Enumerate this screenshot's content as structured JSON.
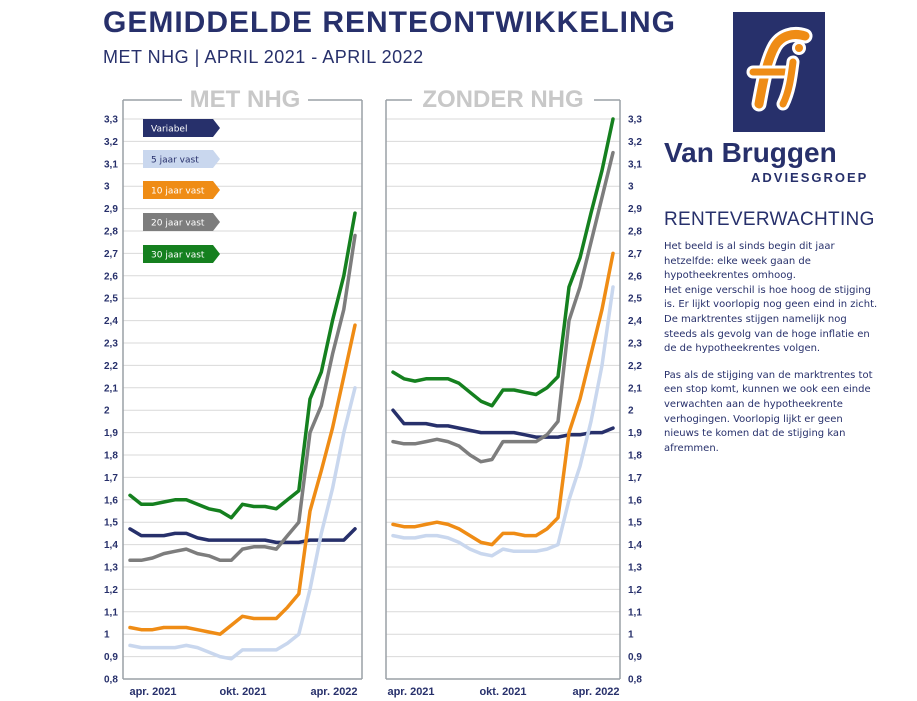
{
  "header": {
    "title": "GEMIDDELDE RENTEONTWIKKELING",
    "subtitle": "MET NHG | APRIL 2021 - APRIL 2022"
  },
  "logo": {
    "brand": "Van Bruggen",
    "sub": "ADVIESGROEP",
    "icon": "fi-monogram-icon"
  },
  "sidebar": {
    "heading": "RENTEVERWACHTING",
    "paragraphs": [
      "Het beeld is al sinds begin dit jaar hetzelfde: elke week gaan de hypotheekrentes omhoog.\nHet enige verschil is hoe hoog de stijging is. Er lijkt voorlopig nog geen eind in zicht. De marktrentes stijgen namelijk nog steeds als gevolg van de hoge inflatie en de de hypotheekrentes volgen.",
      "Pas als de stijging van de marktrentes tot een stop komt, kunnen we ook een einde verwachten aan de hypotheekrente verhogingen. Voorlopig lijkt er geen nieuws te komen dat de stijging kan afremmen."
    ]
  },
  "colors": {
    "navy": "#27306b",
    "Variabel": "#27306b",
    "5 jaar vast": "#c9d7ee",
    "10 jaar vast": "#ef8c15",
    "20 jaar vast": "#7d7d7d",
    "30 jaar vast": "#15801f"
  },
  "chart_data": [
    {
      "type": "line",
      "title": "MET NHG",
      "ylim": [
        0.8,
        3.3
      ],
      "yticks": [
        "0,8",
        "0,9",
        "1",
        "1,1",
        "1,2",
        "1,3",
        "1,4",
        "1,5",
        "1,6",
        "1,7",
        "1,8",
        "1,9",
        "2",
        "2,1",
        "2,2",
        "2,3",
        "2,4",
        "2,5",
        "2,6",
        "2,7",
        "2,8",
        "2,9",
        "3",
        "3,1",
        "3,2",
        "3,3"
      ],
      "xlabels": [
        "apr. 2021",
        "okt. 2021",
        "apr. 2022"
      ],
      "legend": "top-left",
      "grid": true,
      "series": [
        {
          "name": "Variabel",
          "values": [
            1.47,
            1.44,
            1.44,
            1.44,
            1.45,
            1.45,
            1.43,
            1.42,
            1.42,
            1.42,
            1.42,
            1.42,
            1.42,
            1.41,
            1.41,
            1.41,
            1.42,
            1.42,
            1.42,
            1.42,
            1.47
          ]
        },
        {
          "name": "5 jaar vast",
          "values": [
            0.95,
            0.94,
            0.94,
            0.94,
            0.94,
            0.95,
            0.94,
            0.92,
            0.9,
            0.89,
            0.93,
            0.93,
            0.93,
            0.93,
            0.96,
            1.0,
            1.2,
            1.45,
            1.65,
            1.9,
            2.1
          ]
        },
        {
          "name": "10 jaar vast",
          "values": [
            1.03,
            1.02,
            1.02,
            1.03,
            1.03,
            1.03,
            1.02,
            1.01,
            1.0,
            1.04,
            1.08,
            1.07,
            1.07,
            1.07,
            1.12,
            1.18,
            1.55,
            1.73,
            1.92,
            2.15,
            2.38
          ]
        },
        {
          "name": "20 jaar vast",
          "values": [
            1.33,
            1.33,
            1.34,
            1.36,
            1.37,
            1.38,
            1.36,
            1.35,
            1.33,
            1.33,
            1.38,
            1.39,
            1.39,
            1.38,
            1.44,
            1.5,
            1.9,
            2.02,
            2.25,
            2.45,
            2.78
          ]
        },
        {
          "name": "30 jaar vast",
          "values": [
            1.62,
            1.58,
            1.58,
            1.59,
            1.6,
            1.6,
            1.58,
            1.56,
            1.55,
            1.52,
            1.58,
            1.57,
            1.57,
            1.56,
            1.6,
            1.64,
            2.05,
            2.17,
            2.4,
            2.6,
            2.88
          ]
        }
      ]
    },
    {
      "type": "line",
      "title": "ZONDER NHG",
      "ylim": [
        0.8,
        3.3
      ],
      "yticks": [
        "0,8",
        "0,9",
        "1",
        "1,1",
        "1,2",
        "1,3",
        "1,4",
        "1,5",
        "1,6",
        "1,7",
        "1,8",
        "1,9",
        "2",
        "2,1",
        "2,2",
        "2,3",
        "2,4",
        "2,5",
        "2,6",
        "2,7",
        "2,8",
        "2,9",
        "3",
        "3,1",
        "3,2",
        "3,3"
      ],
      "xlabels": [
        "apr. 2021",
        "okt. 2021",
        "apr. 2022"
      ],
      "grid": true,
      "series": [
        {
          "name": "Variabel",
          "values": [
            2.0,
            1.94,
            1.94,
            1.94,
            1.93,
            1.93,
            1.92,
            1.91,
            1.9,
            1.9,
            1.9,
            1.9,
            1.89,
            1.88,
            1.88,
            1.88,
            1.89,
            1.89,
            1.9,
            1.9,
            1.92
          ]
        },
        {
          "name": "5 jaar vast",
          "values": [
            1.44,
            1.43,
            1.43,
            1.44,
            1.44,
            1.43,
            1.41,
            1.38,
            1.36,
            1.35,
            1.38,
            1.37,
            1.37,
            1.37,
            1.38,
            1.4,
            1.6,
            1.75,
            1.95,
            2.2,
            2.55
          ]
        },
        {
          "name": "10 jaar vast",
          "values": [
            1.49,
            1.48,
            1.48,
            1.49,
            1.5,
            1.49,
            1.47,
            1.44,
            1.41,
            1.4,
            1.45,
            1.45,
            1.44,
            1.44,
            1.47,
            1.52,
            1.9,
            2.05,
            2.25,
            2.45,
            2.7
          ]
        },
        {
          "name": "20 jaar vast",
          "values": [
            1.86,
            1.85,
            1.85,
            1.86,
            1.87,
            1.86,
            1.84,
            1.8,
            1.77,
            1.78,
            1.86,
            1.86,
            1.86,
            1.86,
            1.89,
            1.95,
            2.4,
            2.55,
            2.75,
            2.95,
            3.15
          ]
        },
        {
          "name": "30 jaar vast",
          "values": [
            2.17,
            2.14,
            2.13,
            2.14,
            2.14,
            2.14,
            2.12,
            2.08,
            2.04,
            2.02,
            2.09,
            2.09,
            2.08,
            2.07,
            2.1,
            2.15,
            2.55,
            2.68,
            2.88,
            3.07,
            3.3
          ]
        }
      ]
    }
  ]
}
